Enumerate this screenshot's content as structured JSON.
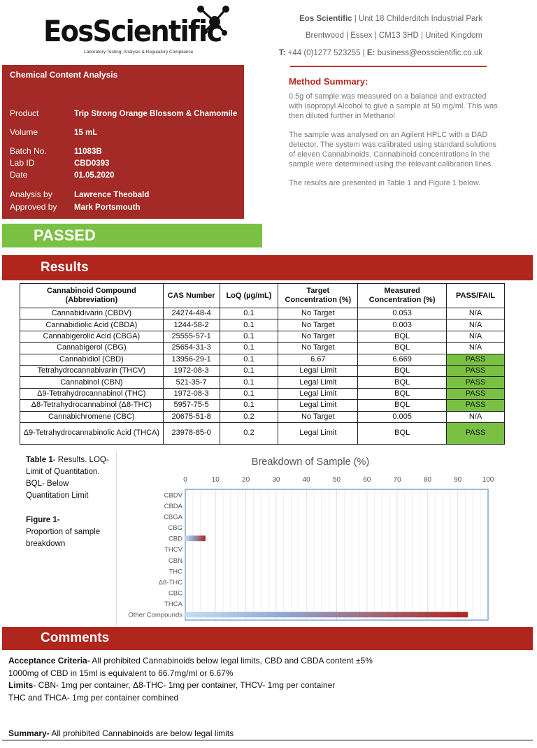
{
  "header": {
    "logo_text": "EosScientific",
    "logo_tagline": "Laboratory Testing, Analysis & Regulatory Compliance",
    "company": "Eos Scientific",
    "address1": " | Unit 18 Childerditch Industrial Park",
    "address2": "Brentwood | Essex | CM13 3HD | United Kingdom",
    "phone_label": "T:",
    "phone": " +44 (0)1277 523255 | ",
    "email_label": "E:",
    "email": " business@eosscientific.co.uk"
  },
  "info": {
    "title": "Chemical Content Analysis",
    "rows": [
      {
        "label": "Product",
        "value": "Trip Strong Orange Blossom & Chamomile"
      },
      {
        "label": "Volume",
        "value": "15 mL"
      },
      {
        "label": "Batch No.",
        "value": "11083B"
      },
      {
        "label": "Lab ID",
        "value": "CBD0393"
      },
      {
        "label": "Date",
        "value": "01.05.2020"
      },
      {
        "label": "Analysis by",
        "value": "Lawrence Theobald"
      },
      {
        "label": "Approved by",
        "value": "Mark Portsmouth"
      }
    ]
  },
  "method": {
    "title": "Method Summary:",
    "paragraphs": [
      "0.5g of sample was measured on a balance and extracted with Isopropyl Alcohol to give a sample at 50 mg/ml. This was then diluted further in Methanol",
      "The sample was analysed on an Agilent HPLC with a DAD detector. The system was calibrated using standard solutions of eleven Cannabinoids. Cannabinoid concentrations in the sample were determined using the relevant calibration lines.",
      "The results are presented in Table 1 and Figure 1 below."
    ]
  },
  "status": "PASSED",
  "results_title": "Results",
  "table": {
    "headers": [
      "Cannabinoid Compound (Abbreviation)",
      "CAS Number",
      "LoQ (µg/mL)",
      "Target Concentration (%)",
      "Measured Concentration (%)",
      "PASS/FAIL"
    ],
    "rows": [
      [
        "Cannabidivarin (CBDV)",
        "24274-48-4",
        "0.1",
        "No Target",
        "0.053",
        "N/A"
      ],
      [
        "Cannabidiolic Acid (CBDA)",
        "1244-58-2",
        "0.1",
        "No Target",
        "0.003",
        "N/A"
      ],
      [
        "Cannabigerolic Acid (CBGA)",
        "25555-57-1",
        "0.1",
        "No Target",
        "BQL",
        "N/A"
      ],
      [
        "Cannabigerol (CBG)",
        "25654-31-3",
        "0.1",
        "No Target",
        "BQL",
        "N/A"
      ],
      [
        "Cannabidiol (CBD)",
        "13956-29-1",
        "0.1",
        "6.67",
        "6.669",
        "PASS"
      ],
      [
        "Tetrahydrocannabivarin (THCV)",
        "1972-08-3",
        "0.1",
        "Legal Limit",
        "BQL",
        "PASS"
      ],
      [
        "Cannabinol (CBN)",
        "521-35-7",
        "0.1",
        "Legal Limit",
        "BQL",
        "PASS"
      ],
      [
        "Δ9-Tetrahydrocannabinol (THC)",
        "1972-08-3",
        "0.1",
        "Legal Limit",
        "BQL",
        "PASS"
      ],
      [
        "Δ8-Tetrahydrocannabinol (Δ8-THC)",
        "5957-75-5",
        "0.1",
        "Legal Limit",
        "BQL",
        "PASS"
      ],
      [
        "Cannabichromene (CBC)",
        "20675-51-8",
        "0.2",
        "No Target",
        "0.005",
        "N/A"
      ],
      [
        "Δ9-Tetrahydrocannabinolic Acid (THCA)",
        "23978-85-0",
        "0.2",
        "Legal Limit",
        "BQL",
        "PASS"
      ]
    ]
  },
  "notes": {
    "table_caption_bold": "Table 1",
    "table_caption": "- Results. LOQ- Limit of Quantitation. BQL- Below Quantitation Limit",
    "figure_caption_bold": "Figure 1-",
    "figure_caption": "Proportion of sample breakdown"
  },
  "chart_data": {
    "type": "bar",
    "orientation": "horizontal",
    "title": "Breakdown of Sample (%)",
    "categories": [
      "CBDV",
      "CBDA",
      "CBGA",
      "CBG",
      "CBD",
      "THCV",
      "CBN",
      "THC",
      "Δ8-THC",
      "CBC",
      "THCA",
      "Other Compounds"
    ],
    "values": [
      0.053,
      0.003,
      0,
      0,
      6.669,
      0,
      0,
      0,
      0,
      0.005,
      0,
      93.3
    ],
    "xlim": [
      0,
      100
    ],
    "xticks": [
      0,
      10,
      20,
      30,
      40,
      50,
      60,
      70,
      80,
      90,
      100
    ],
    "grid": true,
    "bar_colors": [
      "#bcd3ee",
      "#b0261d"
    ]
  },
  "comments_title": "Comments",
  "comments": {
    "l1b": "Acceptance Criteria-",
    "l1": " All prohibited Cannabinoids below legal limits, CBD and CBDA content ±5%",
    "l2": "1000mg of CBD in 15ml is equivalent to 66.7mg/ml or 6.67%",
    "l3b": "Limits",
    "l3": "- CBN- 1mg per container, Δ8-THC- 1mg per container, THCV- 1mg per container",
    "l4": "THC and THCA- 1mg per container combined",
    "l5b": "Summary-",
    "l5": " All prohibited Cannabinoids are below legal limits"
  }
}
